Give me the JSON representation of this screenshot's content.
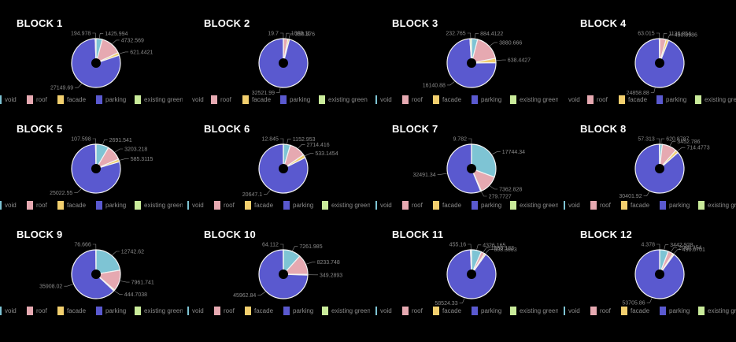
{
  "categories": [
    "void",
    "roof",
    "facade",
    "parking",
    "existing green"
  ],
  "colors": {
    "void": "#7ec4d4",
    "roof": "#e6a9b1",
    "facade": "#f2cf6e",
    "parking": "#5a59cf",
    "existing green": "#c9eb9a"
  },
  "chart_data": [
    {
      "type": "pie",
      "title": "BLOCK 1",
      "labels": [
        "void",
        "roof",
        "facade",
        "parking",
        "existing green"
      ],
      "values": [
        1425.994,
        4732.569,
        621.4421,
        27149.69,
        194.978
      ]
    },
    {
      "type": "pie",
      "title": "BLOCK 2",
      "labels": [
        "void",
        "roof",
        "facade",
        "parking",
        "existing green"
      ],
      "values": [
        0,
        1009.11,
        350.376,
        32521.99,
        19.7
      ]
    },
    {
      "type": "pie",
      "title": "BLOCK 3",
      "labels": [
        "void",
        "roof",
        "facade",
        "parking",
        "existing green"
      ],
      "values": [
        884.4122,
        3880.666,
        638.4427,
        16140.88,
        232.765
      ]
    },
    {
      "type": "pie",
      "title": "BLOCK 4",
      "labels": [
        "void",
        "roof",
        "facade",
        "parking",
        "existing green"
      ],
      "values": [
        0,
        1136.854,
        450.8986,
        24858.88,
        63.015
      ]
    },
    {
      "type": "pie",
      "title": "BLOCK 5",
      "labels": [
        "void",
        "roof",
        "facade",
        "parking",
        "existing green"
      ],
      "values": [
        2691.541,
        3203.218,
        585.3115,
        25022.55,
        107.598
      ]
    },
    {
      "type": "pie",
      "title": "BLOCK 6",
      "labels": [
        "void",
        "roof",
        "facade",
        "parking",
        "existing green"
      ],
      "values": [
        1152.953,
        2714.416,
        533.1454,
        20647.1,
        12.845
      ]
    },
    {
      "type": "pie",
      "title": "BLOCK 7",
      "labels": [
        "void",
        "roof",
        "facade",
        "parking",
        "existing green"
      ],
      "values": [
        17744.34,
        7362.828,
        279.7727,
        32491.34,
        9.782
      ]
    },
    {
      "type": "pie",
      "title": "BLOCK 8",
      "labels": [
        "void",
        "roof",
        "facade",
        "parking",
        "existing green"
      ],
      "values": [
        620.8787,
        3452.786,
        714.4773,
        30401.92,
        57.313
      ]
    },
    {
      "type": "pie",
      "title": "BLOCK 9",
      "labels": [
        "void",
        "roof",
        "facade",
        "parking",
        "existing green"
      ],
      "values": [
        12742.62,
        7961.741,
        444.7038,
        35908.02,
        76.666
      ]
    },
    {
      "type": "pie",
      "title": "BLOCK 10",
      "labels": [
        "void",
        "roof",
        "facade",
        "parking",
        "existing green"
      ],
      "values": [
        7261.985,
        8233.748,
        349.2893,
        45962.84,
        64.112
      ]
    },
    {
      "type": "pie",
      "title": "BLOCK 11",
      "labels": [
        "void",
        "roof",
        "facade",
        "parking",
        "existing green"
      ],
      "values": [
        4326.165,
        1550.183,
        608.3663,
        58524.33,
        455.16
      ]
    },
    {
      "type": "pie",
      "title": "BLOCK 12",
      "labels": [
        "void",
        "roof",
        "facade",
        "parking",
        "existing green"
      ],
      "values": [
        3442.928,
        2060.354,
        490.0701,
        53705.86,
        4.378
      ]
    }
  ]
}
